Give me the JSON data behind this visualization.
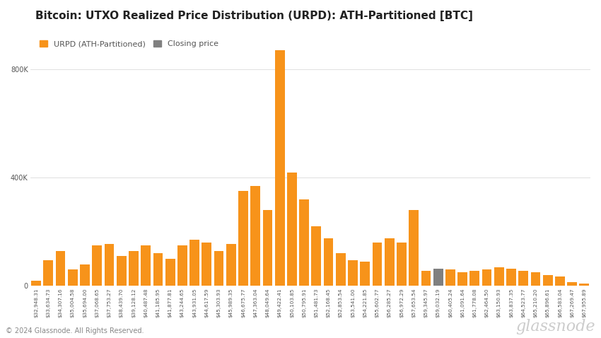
{
  "title": "Bitcoin: UTXO Realized Price Distribution (URPD): ATH-Partitioned [BTC]",
  "legend_labels": [
    "URPD (ATH-Partitioned)",
    "Closing price"
  ],
  "legend_colors": [
    "#f7931a",
    "#808080"
  ],
  "bar_color": "#f7931a",
  "closing_color": "#808080",
  "background_color": "#ffffff",
  "grid_color": "#e0e0e0",
  "ytick_labels": [
    "0",
    "400K",
    "800K"
  ],
  "ytick_values": [
    0,
    400000,
    800000
  ],
  "ylim": [
    0,
    950000
  ],
  "footer": "© 2024 Glassnode. All Rights Reserved.",
  "watermark": "glassnode",
  "categories": [
    "$32,948.31",
    "$33,634.73",
    "$34,307.16",
    "$35,004.58",
    "$35,694.00",
    "$37,068.65",
    "$37,753.27",
    "$38,439.70",
    "$39,128.12",
    "$40,487.48",
    "$41,185.95",
    "$41,877.81",
    "$43,244.65",
    "$43,931.05",
    "$44,617.59",
    "$45,303.93",
    "$45,989.35",
    "$46,675.77",
    "$47,363.04",
    "$48,049.64",
    "$49,422.41",
    "$50,103.85",
    "$50,795.91",
    "$51,481.73",
    "$52,168.45",
    "$52,853.54",
    "$53,541.00",
    "$54,221.85",
    "$55,602.77",
    "$56,285.27",
    "$56,972.29",
    "$57,653.54",
    "$59,345.97",
    "$59,032.19",
    "$60,405.24",
    "$61,091.64",
    "$61,778.08",
    "$62,464.50",
    "$63,150.93",
    "$63,837.35",
    "$64,523.77",
    "$65,210.20",
    "$65,896.61",
    "$66,583.04",
    "$67,269.47",
    "$67,955.89"
  ],
  "values": [
    20000,
    95000,
    130000,
    60000,
    80000,
    150000,
    155000,
    110000,
    130000,
    150000,
    120000,
    100000,
    150000,
    170000,
    160000,
    130000,
    155000,
    350000,
    370000,
    280000,
    870000,
    420000,
    320000,
    220000,
    175000,
    120000,
    95000,
    90000,
    160000,
    175000,
    160000,
    280000,
    55000,
    65000,
    60000,
    50000,
    55000,
    60000,
    70000,
    65000,
    55000,
    50000,
    40000,
    35000,
    15000,
    10000
  ],
  "closing_bar_index": 33,
  "title_fontsize": 11,
  "axis_fontsize": 7,
  "legend_fontsize": 8
}
